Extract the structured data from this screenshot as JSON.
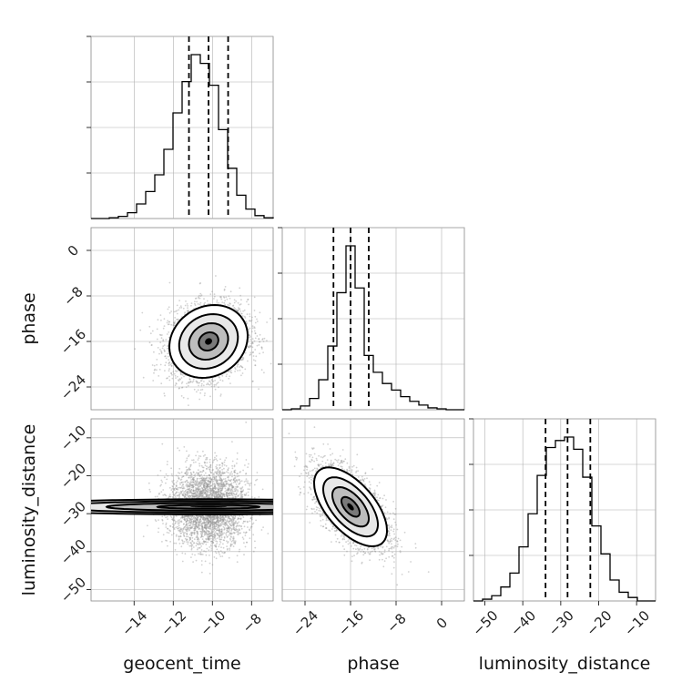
{
  "chart_data": {
    "type": "corner",
    "parameters": [
      "geocent_time",
      "phase",
      "luminosity_distance"
    ],
    "axis_labels": {
      "geocent_time": "geocent_time",
      "phase": "phase",
      "luminosity_distance": "luminosity_distance"
    },
    "ranges": {
      "geocent_time": [
        -16.2,
        -6.9
      ],
      "phase": [
        -28.0,
        4.0
      ],
      "luminosity_distance": [
        -53.0,
        -5.0
      ]
    },
    "ticks": {
      "geocent_time": [
        -14,
        -12,
        -10,
        -8
      ],
      "phase": [
        -24,
        -16,
        -8,
        0
      ],
      "luminosity_distance": [
        -50,
        -40,
        -30,
        -20,
        -10
      ]
    },
    "tick_labels": {
      "geocent_time": [
        "−14",
        "−12",
        "−10",
        "−8"
      ],
      "phase": [
        "−24",
        "−16",
        "−8",
        "0"
      ],
      "luminosity_distance": [
        "−50",
        "−40",
        "−30",
        "−20",
        "−10"
      ]
    },
    "quantiles": {
      "geocent_time": [
        -11.2,
        -10.2,
        -9.2
      ],
      "phase": [
        -19.0,
        -16.0,
        -12.8
      ],
      "luminosity_distance": [
        -34.0,
        -28.2,
        -22.2
      ]
    },
    "histograms": {
      "geocent_time": {
        "bin_edges": [
          -16.2,
          -15.735,
          -15.27,
          -14.805,
          -14.34,
          -13.875,
          -13.41,
          -12.945,
          -12.48,
          -12.015,
          -11.55,
          -11.085,
          -10.62,
          -10.155,
          -9.69,
          -9.225,
          -8.76,
          -8.295,
          -7.83,
          -7.365,
          -6.9
        ],
        "counts": [
          0,
          0,
          1,
          3,
          8,
          20,
          37,
          60,
          95,
          145,
          188,
          225,
          213,
          183,
          122,
          69,
          32,
          13,
          4,
          1
        ]
      },
      "phase": {
        "bin_edges": [
          -28.0,
          -26.4,
          -24.8,
          -23.2,
          -21.6,
          -20.0,
          -18.4,
          -16.8,
          -15.2,
          -13.6,
          -12.0,
          -10.4,
          -8.8,
          -7.2,
          -5.6,
          -4.0,
          -2.4,
          -0.8,
          0.8,
          2.4,
          4.0
        ],
        "counts": [
          0,
          1,
          4,
          12,
          32,
          68,
          125,
          175,
          130,
          58,
          40,
          28,
          21,
          14,
          9,
          5,
          2,
          1,
          0,
          0
        ]
      },
      "luminosity_distance": {
        "bin_edges": [
          -53.0,
          -50.6,
          -48.2,
          -45.8,
          -43.4,
          -41.0,
          -38.6,
          -36.2,
          -33.8,
          -31.4,
          -29.0,
          -26.6,
          -24.2,
          -21.8,
          -19.4,
          -17.0,
          -14.6,
          -12.2,
          -9.8,
          -7.4,
          -5.0
        ],
        "counts": [
          0,
          1,
          3,
          8,
          16,
          31,
          50,
          72,
          88,
          92,
          94,
          87,
          71,
          43,
          27,
          12,
          5,
          2,
          0,
          0
        ]
      }
    },
    "correlations": {
      "phase_vs_geocent_time": 0.15,
      "luminosity_distance_vs_geocent_time": 0.0,
      "luminosity_distance_vs_phase": -0.6
    },
    "marginal_stds": {
      "geocent_time": 1.0,
      "phase": 3.2,
      "luminosity_distance": 5.2
    },
    "scatter_samples_per_panel": 3500,
    "contour_levels_sigma": [
      0.5,
      1.0,
      1.5,
      2.0
    ],
    "grid": true,
    "quantile_line_style": "dashed",
    "colors": {
      "histogram": "#000000",
      "contour": "#000000",
      "scatter": "#9a9a9a",
      "grid": "#b0b0b0",
      "frame": "#888888"
    }
  }
}
